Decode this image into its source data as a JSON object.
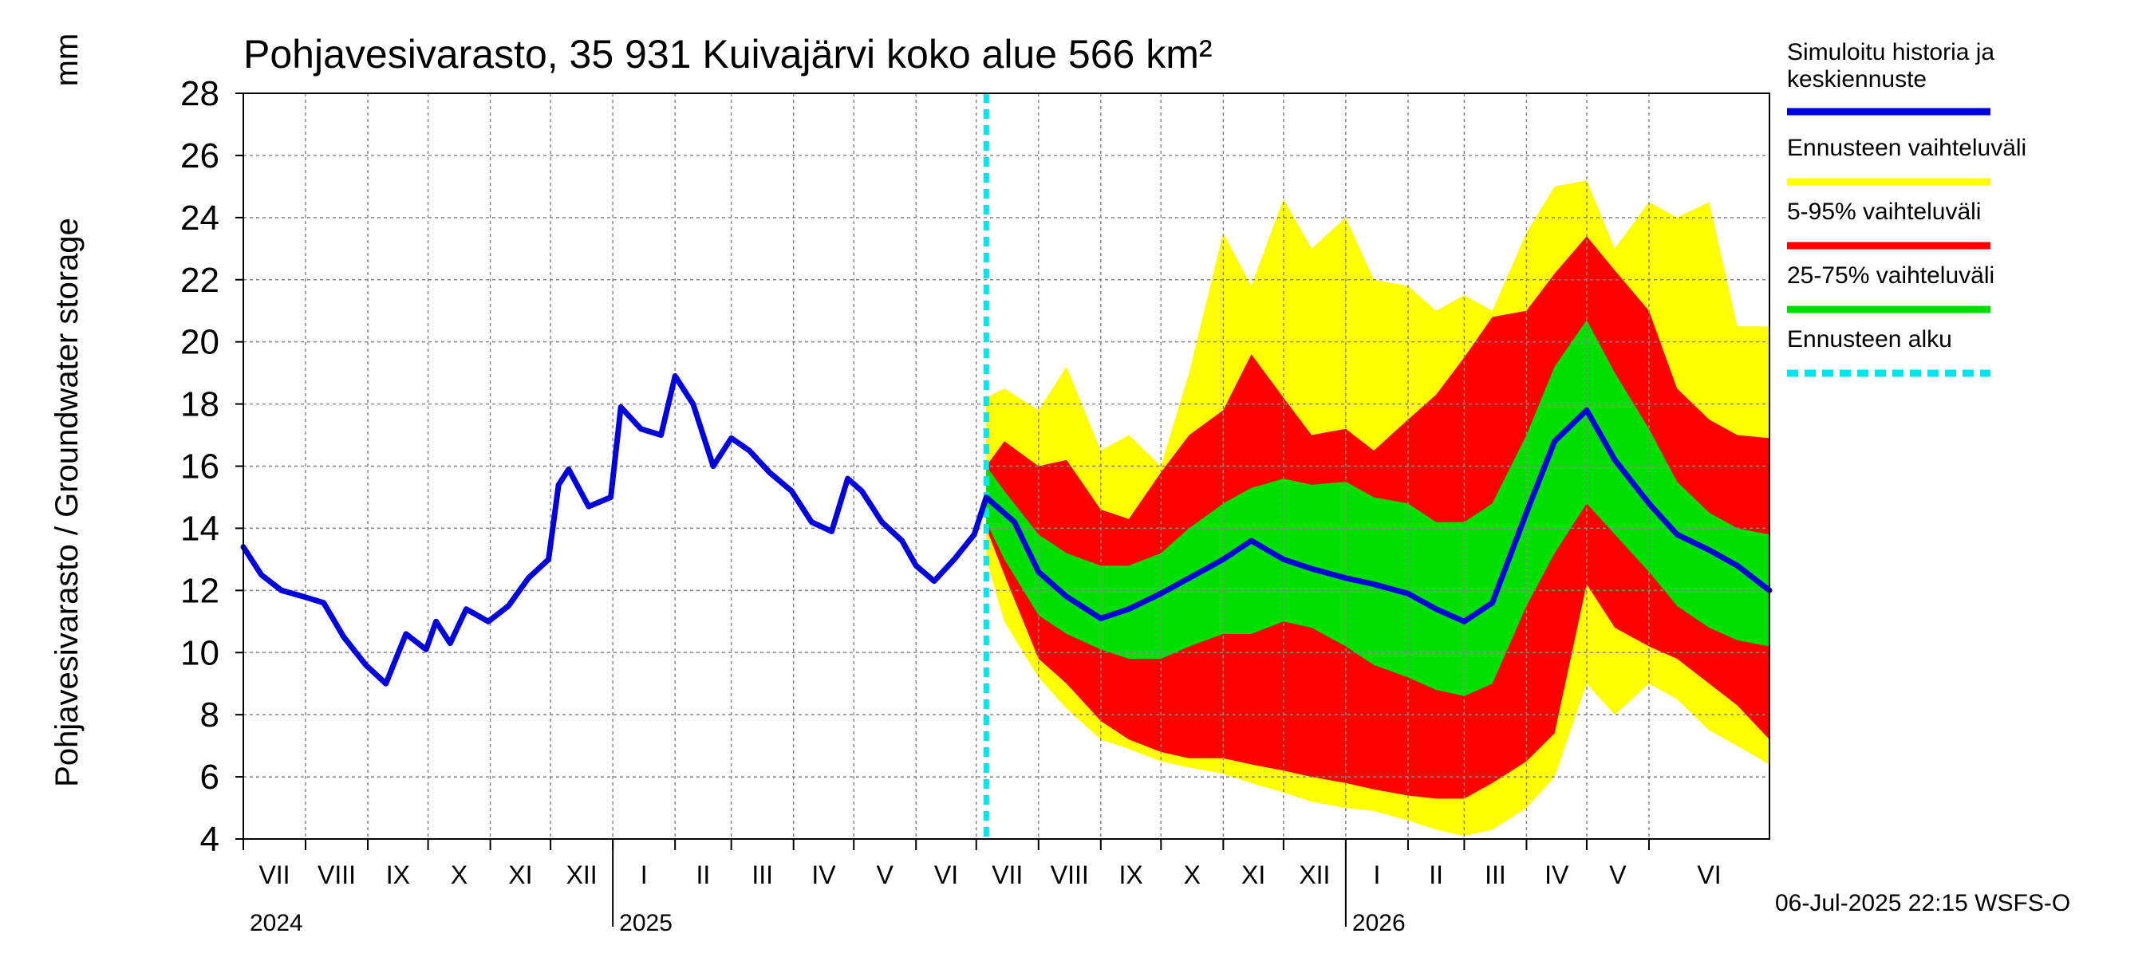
{
  "chart_data": {
    "type": "area",
    "title": "Pohjavesivarasto, 35 931 Kuivajärvi koko alue 566 km²",
    "ylabel": "Pohjavesivarasto / Groundwater storage",
    "yunit": "mm",
    "ylim": [
      4,
      28
    ],
    "yticks": [
      4,
      6,
      8,
      10,
      12,
      14,
      16,
      18,
      20,
      22,
      24,
      26,
      28
    ],
    "xlim": [
      "2024-07-01",
      "2026-07-31"
    ],
    "grid": true,
    "legend_position": "right",
    "forecast_start": "2025-07-06",
    "footer": "06-Jul-2025 22:15 WSFS-O",
    "months": [
      {
        "label": "VII",
        "start": "2024-07-01"
      },
      {
        "label": "VIII",
        "start": "2024-08-01"
      },
      {
        "label": "IX",
        "start": "2024-09-01"
      },
      {
        "label": "X",
        "start": "2024-10-01"
      },
      {
        "label": "XI",
        "start": "2024-11-01"
      },
      {
        "label": "XII",
        "start": "2024-12-01"
      },
      {
        "label": "I",
        "start": "2025-01-01"
      },
      {
        "label": "II",
        "start": "2025-02-01"
      },
      {
        "label": "III",
        "start": "2025-03-01"
      },
      {
        "label": "IV",
        "start": "2025-04-01"
      },
      {
        "label": "V",
        "start": "2025-05-01"
      },
      {
        "label": "VI",
        "start": "2025-06-01"
      },
      {
        "label": "VII",
        "start": "2025-07-01"
      },
      {
        "label": "VIII",
        "start": "2025-08-01"
      },
      {
        "label": "IX",
        "start": "2025-09-01"
      },
      {
        "label": "X",
        "start": "2025-10-01"
      },
      {
        "label": "XI",
        "start": "2025-11-01"
      },
      {
        "label": "XII",
        "start": "2025-12-01"
      },
      {
        "label": "I",
        "start": "2026-01-01"
      },
      {
        "label": "II",
        "start": "2026-02-01"
      },
      {
        "label": "III",
        "start": "2026-03-01"
      },
      {
        "label": "IV",
        "start": "2026-04-01"
      },
      {
        "label": "V",
        "start": "2026-05-01"
      },
      {
        "label": "VI",
        "start": "2026-06-01"
      }
    ],
    "years": [
      {
        "label": "2024",
        "date": "2024-07-01"
      },
      {
        "label": "2025",
        "date": "2025-01-01"
      },
      {
        "label": "2026",
        "date": "2026-01-01"
      }
    ],
    "colors": {
      "history": "#0000dd",
      "full_range": "#ffff00",
      "p5_95": "#ff0000",
      "p25_75": "#00e000",
      "forecast_start": "#00e5ee",
      "grid": "#888888"
    },
    "legend": [
      {
        "label": "Simuloitu historia ja keskiennuste",
        "color": "#0000dd",
        "style": "solid"
      },
      {
        "label": "Ennusteen vaihteluväli",
        "color": "#ffff00",
        "style": "solid"
      },
      {
        "label": "5-95% vaihteluväli",
        "color": "#ff0000",
        "style": "solid"
      },
      {
        "label": "25-75% vaihteluväli",
        "color": "#00e000",
        "style": "solid"
      },
      {
        "label": "Ennusteen alku",
        "color": "#00e5ee",
        "style": "dashed"
      }
    ],
    "series": [
      {
        "name": "Simuloitu historia ja keskiennuste",
        "x": [
          "2024-07-01",
          "2024-07-10",
          "2024-07-20",
          "2024-07-31",
          "2024-08-10",
          "2024-08-20",
          "2024-08-31",
          "2024-09-10",
          "2024-09-20",
          "2024-09-30",
          "2024-10-05",
          "2024-10-12",
          "2024-10-20",
          "2024-10-31",
          "2024-11-10",
          "2024-11-20",
          "2024-11-30",
          "2024-12-05",
          "2024-12-10",
          "2024-12-20",
          "2024-12-31",
          "2025-01-05",
          "2025-01-15",
          "2025-01-25",
          "2025-02-01",
          "2025-02-10",
          "2025-02-20",
          "2025-03-01",
          "2025-03-10",
          "2025-03-20",
          "2025-03-31",
          "2025-04-10",
          "2025-04-20",
          "2025-04-28",
          "2025-05-05",
          "2025-05-15",
          "2025-05-25",
          "2025-06-01",
          "2025-06-10",
          "2025-06-20",
          "2025-06-30",
          "2025-07-06",
          "2025-07-20",
          "2025-08-01",
          "2025-08-15",
          "2025-09-01",
          "2025-09-15",
          "2025-10-01",
          "2025-10-15",
          "2025-11-01",
          "2025-11-15",
          "2025-12-01",
          "2025-12-15",
          "2026-01-01",
          "2026-01-15",
          "2026-02-01",
          "2026-02-15",
          "2026-03-01",
          "2026-03-15",
          "2026-04-01",
          "2026-04-15",
          "2026-05-01",
          "2026-05-15",
          "2026-06-01",
          "2026-06-15",
          "2026-07-01",
          "2026-07-15",
          "2026-07-31"
        ],
        "values": [
          13.4,
          12.5,
          12.0,
          11.8,
          11.6,
          10.5,
          9.6,
          9.0,
          10.6,
          10.1,
          11.0,
          10.3,
          11.4,
          11.0,
          11.5,
          12.4,
          13.0,
          15.4,
          15.9,
          14.7,
          15.0,
          17.9,
          17.2,
          17.0,
          18.9,
          18.0,
          16.0,
          16.9,
          16.5,
          15.8,
          15.2,
          14.2,
          13.9,
          15.6,
          15.2,
          14.2,
          13.6,
          12.8,
          12.3,
          13.0,
          13.8,
          15.0,
          14.2,
          12.6,
          11.8,
          11.1,
          11.4,
          11.9,
          12.4,
          13.0,
          13.6,
          13.0,
          12.7,
          12.4,
          12.2,
          11.9,
          11.4,
          11.0,
          11.6,
          14.5,
          16.8,
          17.8,
          16.2,
          14.8,
          13.8,
          13.3,
          12.8,
          12.0
        ]
      },
      {
        "name": "Ennusteen vaihteluväli",
        "x": [
          "2025-07-06",
          "2025-07-15",
          "2025-08-01",
          "2025-08-15",
          "2025-09-01",
          "2025-09-15",
          "2025-10-01",
          "2025-10-15",
          "2025-11-01",
          "2025-11-15",
          "2025-12-01",
          "2025-12-15",
          "2026-01-01",
          "2026-01-15",
          "2026-02-01",
          "2026-02-15",
          "2026-03-01",
          "2026-03-15",
          "2026-04-01",
          "2026-04-15",
          "2026-05-01",
          "2026-05-15",
          "2026-06-01",
          "2026-06-15",
          "2026-07-01",
          "2026-07-15",
          "2026-07-31"
        ],
        "upper": [
          18.2,
          18.5,
          17.8,
          19.2,
          16.5,
          17.0,
          16.0,
          19.0,
          23.5,
          21.8,
          24.6,
          23.0,
          24.0,
          22.0,
          21.8,
          21.0,
          21.5,
          21.0,
          23.5,
          25.0,
          25.2,
          23.0,
          24.5,
          24.0,
          24.5,
          20.5,
          20.5
        ],
        "lower": [
          13.0,
          11.0,
          9.2,
          8.2,
          7.2,
          6.9,
          6.5,
          6.3,
          6.1,
          5.8,
          5.5,
          5.2,
          5.0,
          4.9,
          4.6,
          4.3,
          4.1,
          4.3,
          5.0,
          6.0,
          9.0,
          8.0,
          9.0,
          8.5,
          7.5,
          7.0,
          6.4
        ]
      },
      {
        "name": "5-95% vaihteluväli",
        "x": [
          "2025-07-06",
          "2025-07-15",
          "2025-08-01",
          "2025-08-15",
          "2025-09-01",
          "2025-09-15",
          "2025-10-01",
          "2025-10-15",
          "2025-11-01",
          "2025-11-15",
          "2025-12-01",
          "2025-12-15",
          "2026-01-01",
          "2026-01-15",
          "2026-02-01",
          "2026-02-15",
          "2026-03-01",
          "2026-03-15",
          "2026-04-01",
          "2026-04-15",
          "2026-05-01",
          "2026-05-15",
          "2026-06-01",
          "2026-06-15",
          "2026-07-01",
          "2026-07-15",
          "2026-07-31"
        ],
        "upper": [
          16.0,
          16.8,
          16.0,
          16.2,
          14.6,
          14.3,
          15.8,
          17.0,
          17.8,
          19.6,
          18.2,
          17.0,
          17.2,
          16.5,
          17.5,
          18.3,
          19.5,
          20.8,
          21.0,
          22.2,
          23.4,
          22.3,
          21.0,
          18.5,
          17.5,
          17.0,
          16.9
        ],
        "lower": [
          14.0,
          12.5,
          9.8,
          9.0,
          7.8,
          7.2,
          6.8,
          6.6,
          6.6,
          6.4,
          6.2,
          6.0,
          5.8,
          5.6,
          5.4,
          5.3,
          5.3,
          5.8,
          6.5,
          7.4,
          12.2,
          10.8,
          10.2,
          9.8,
          9.0,
          8.3,
          7.2
        ]
      },
      {
        "name": "25-75% vaihteluväli",
        "x": [
          "2025-07-06",
          "2025-07-15",
          "2025-08-01",
          "2025-08-15",
          "2025-09-01",
          "2025-09-15",
          "2025-10-01",
          "2025-10-15",
          "2025-11-01",
          "2025-11-15",
          "2025-12-01",
          "2025-12-15",
          "2026-01-01",
          "2026-01-15",
          "2026-02-01",
          "2026-02-15",
          "2026-03-01",
          "2026-03-15",
          "2026-04-01",
          "2026-04-15",
          "2026-05-01",
          "2026-05-15",
          "2026-06-01",
          "2026-06-15",
          "2026-07-01",
          "2026-07-15",
          "2026-07-31"
        ],
        "upper": [
          16.0,
          15.2,
          13.8,
          13.2,
          12.8,
          12.8,
          13.2,
          14.0,
          14.8,
          15.3,
          15.6,
          15.4,
          15.5,
          15.0,
          14.8,
          14.2,
          14.2,
          14.8,
          17.0,
          19.2,
          20.7,
          19.0,
          17.2,
          15.5,
          14.5,
          14.0,
          13.8
        ],
        "lower": [
          14.2,
          13.0,
          11.2,
          10.6,
          10.1,
          9.8,
          9.8,
          10.2,
          10.6,
          10.6,
          11.0,
          10.8,
          10.2,
          9.6,
          9.2,
          8.8,
          8.6,
          9.0,
          11.5,
          13.2,
          14.8,
          13.8,
          12.6,
          11.5,
          10.8,
          10.4,
          10.2
        ]
      }
    ]
  }
}
